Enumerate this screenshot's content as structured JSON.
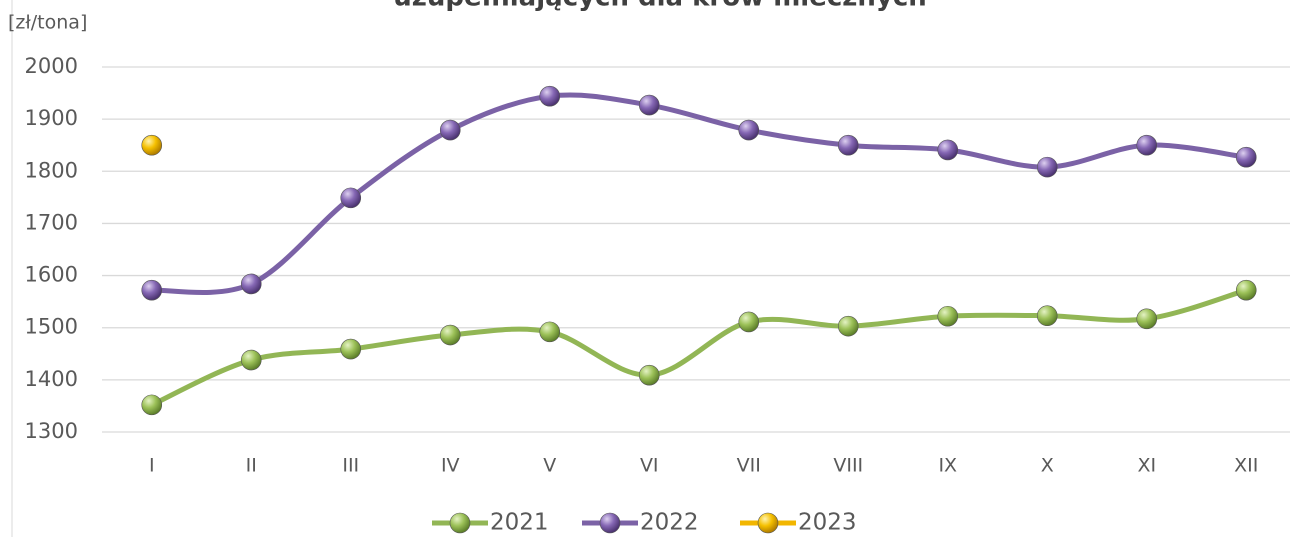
{
  "chart_data": {
    "type": "line",
    "title": "uzupełniających dla krów mlecznych",
    "y_label": "[zł/tona]",
    "categories": [
      "I",
      "II",
      "III",
      "IV",
      "V",
      "VI",
      "VII",
      "VIII",
      "IX",
      "X",
      "XI",
      "XII"
    ],
    "series": [
      {
        "name": "2021",
        "color": "#92b655",
        "values": [
          1352,
          1438,
          1459,
          1486,
          1492,
          1409,
          1511,
          1503,
          1522,
          1523,
          1517,
          1572
        ]
      },
      {
        "name": "2022",
        "color": "#7b62a6",
        "values": [
          1572,
          1584,
          1749,
          1879,
          1944,
          1927,
          1879,
          1850,
          1841,
          1808,
          1850,
          1827
        ]
      },
      {
        "name": "2023",
        "color": "#f2b600",
        "values": [
          1850,
          null,
          null,
          null,
          null,
          null,
          null,
          null,
          null,
          null,
          null,
          null
        ]
      }
    ],
    "ylim": [
      1300,
      2000
    ],
    "yticks": [
      1300,
      1400,
      1500,
      1600,
      1700,
      1800,
      1900,
      2000
    ],
    "grid": true,
    "smooth": true,
    "legend": "bottom"
  }
}
